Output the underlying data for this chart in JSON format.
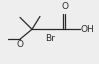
{
  "bg_color": "#eeeeee",
  "line_color": "#2a2a2a",
  "text_color": "#2a2a2a",
  "figsize": [
    0.99,
    0.64
  ],
  "dpi": 100,
  "xlim": [
    0,
    99
  ],
  "ylim": [
    0,
    64
  ]
}
